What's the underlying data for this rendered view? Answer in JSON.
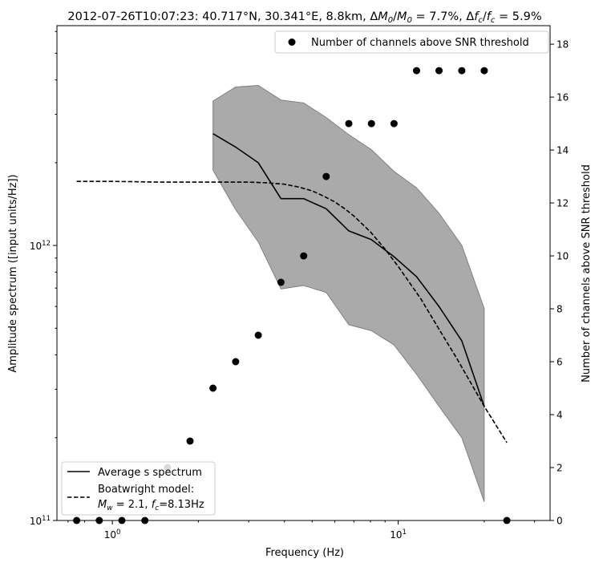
{
  "chart_data": {
    "type": "line",
    "title": "2012-07-26T10:07:23: 40.717°N, 30.341°E, 8.8km, ΔM₀/M₀ = 7.7%, Δfᶜ/fᶜ = 5.9%",
    "xlabel": "Frequency (Hz)",
    "ylabel_left": "Amplitude spectrum ([input units/Hz])",
    "ylabel_right": "Number of channels above SNR threshold",
    "x_scale": "log",
    "y_left_scale": "log",
    "xlim": [
      0.64,
      34
    ],
    "ylim_left": [
      100000000000.0,
      6300000000000.0
    ],
    "ylim_right": [
      0,
      18.7
    ],
    "x_ticks": [
      {
        "value": 1,
        "label": "10⁰"
      },
      {
        "value": 10,
        "label": "10¹"
      }
    ],
    "y_left_ticks": [
      {
        "value": 100000000000.0,
        "label": "10¹¹"
      },
      {
        "value": 1000000000000.0,
        "label": "10¹²"
      }
    ],
    "y_right_ticks": [
      0,
      2,
      4,
      6,
      8,
      10,
      12,
      14,
      16,
      18
    ],
    "series": [
      {
        "name": "Average s spectrum",
        "style": "solid",
        "color": "#000000",
        "x": [
          2.25,
          2.7,
          3.24,
          3.89,
          4.67,
          5.6,
          6.72,
          8.06,
          9.67,
          11.6,
          13.9,
          16.7,
          20.0
        ],
        "y": [
          2550000000000.0,
          2280000000000.0,
          2000000000000.0,
          1480000000000.0,
          1480000000000.0,
          1360000000000.0,
          1130000000000.0,
          1050000000000.0,
          910000000000.0,
          770000000000.0,
          600000000000.0,
          450000000000.0,
          260000000000.0
        ]
      },
      {
        "name": "Boatwright model: M_w = 2.1, f_c=8.13Hz",
        "legend_line1": "Boatwright model:",
        "legend_line2": "Mw = 2.1, fc=8.13Hz",
        "style": "dashed",
        "color": "#000000",
        "x": [
          0.75,
          1.0,
          1.5,
          2.0,
          2.5,
          3.0,
          3.5,
          4.0,
          4.5,
          5.0,
          5.5,
          6.0,
          6.5,
          7.0,
          8.0,
          9.0,
          10.0,
          12.0,
          14.0,
          16.0,
          20.0,
          24.0
        ],
        "y": [
          1710000000000.0,
          1710000000000.0,
          1700000000000.0,
          1700000000000.0,
          1700000000000.0,
          1700000000000.0,
          1690000000000.0,
          1670000000000.0,
          1630000000000.0,
          1580000000000.0,
          1510000000000.0,
          1440000000000.0,
          1360000000000.0,
          1280000000000.0,
          1120000000000.0,
          970000000000.0,
          840000000000.0,
          640000000000.0,
          490000000000.0,
          390000000000.0,
          260000000000.0,
          192000000000.0
        ]
      }
    ],
    "band": {
      "color": "#aaaaaa",
      "x": [
        2.25,
        2.7,
        3.24,
        3.89,
        4.67,
        5.6,
        6.72,
        8.06,
        9.67,
        11.6,
        13.9,
        16.7,
        20.0
      ],
      "upper": [
        3350000000000.0,
        3770000000000.0,
        3820000000000.0,
        3380000000000.0,
        3300000000000.0,
        2920000000000.0,
        2530000000000.0,
        2230000000000.0,
        1860000000000.0,
        1620000000000.0,
        1310000000000.0,
        1000000000000.0,
        590000000000.0
      ],
      "lower": [
        1880000000000.0,
        1350000000000.0,
        1030000000000.0,
        695000000000.0,
        715000000000.0,
        675000000000.0,
        515000000000.0,
        490000000000.0,
        435000000000.0,
        340000000000.0,
        260000000000.0,
        200000000000.0,
        117000000000.0
      ]
    },
    "scatter": {
      "name": "Number of channels above SNR threshold",
      "axis": "right",
      "color": "#000000",
      "x": [
        0.75,
        0.9,
        1.08,
        1.3,
        1.56,
        1.87,
        2.25,
        2.7,
        3.24,
        3.89,
        4.67,
        5.6,
        6.72,
        8.06,
        9.67,
        11.6,
        13.9,
        16.7,
        20.0,
        24.0
      ],
      "y": [
        0,
        0,
        0,
        0,
        2,
        3,
        5,
        6,
        7,
        9,
        10,
        13,
        15,
        15,
        15,
        17,
        17,
        17,
        17,
        0
      ]
    },
    "legend_top": {
      "position": "upper right"
    },
    "legend_bottom": {
      "position": "lower left"
    }
  }
}
